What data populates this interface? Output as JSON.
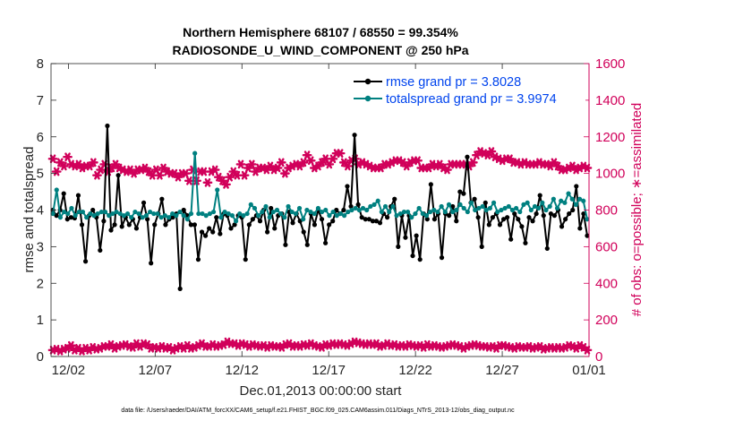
{
  "chart_data": {
    "type": "line",
    "title": "Northern Hemisphere 68107 / 68550 = 99.354%",
    "subtitle": "RADIOSONDE_U_WIND_COMPONENT @ 250 hPa",
    "xlabel": "Dec.01,2013 00:00:00 start",
    "ylabel": "rmse and totalspread",
    "ylabel_right": "# of obs: o=possible; ∗=assimilated",
    "xlim": [
      0,
      31
    ],
    "ylim": [
      0,
      8
    ],
    "ylim_right": [
      0,
      1600
    ],
    "x_ticks": [
      {
        "x": 1,
        "label": "12/02"
      },
      {
        "x": 6,
        "label": "12/07"
      },
      {
        "x": 11,
        "label": "12/12"
      },
      {
        "x": 16,
        "label": "12/17"
      },
      {
        "x": 21,
        "label": "12/22"
      },
      {
        "x": 26,
        "label": "12/27"
      },
      {
        "x": 31,
        "label": "01/01"
      }
    ],
    "y_ticks": [
      "0",
      "1",
      "2",
      "3",
      "4",
      "5",
      "6",
      "7",
      "8"
    ],
    "y_ticks_right": [
      "0",
      "200",
      "400",
      "600",
      "800",
      "1000",
      "1200",
      "1400",
      "1600"
    ],
    "grid": false,
    "legend_position": "top-right",
    "footer": "data file: /Users/raeder/DAI/ATM_forcXX/CAM6_setup/f.e21.FHIST_BGC.f09_025.CAM6assim.011/Diags_NTrS_2013-12/obs_diag_output.nc",
    "colors": {
      "rmse": "#000000",
      "spread": "#008080",
      "obs": "#d1005a"
    },
    "series": [
      {
        "name": "rmse grand pr = 3.8028",
        "axis": "left",
        "values": [
          4.0,
          3.85,
          4.0,
          4.45,
          3.75,
          3.8,
          3.78,
          4.4,
          3.6,
          2.6,
          3.85,
          4.0,
          3.8,
          2.9,
          3.7,
          6.3,
          3.45,
          3.6,
          4.95,
          3.55,
          3.8,
          3.6,
          3.75,
          3.5,
          3.8,
          4.2,
          3.75,
          2.55,
          3.6,
          3.9,
          4.3,
          3.6,
          3.75,
          3.8,
          3.9,
          1.85,
          4.0,
          3.85,
          3.6,
          3.6,
          2.65,
          3.4,
          3.3,
          3.5,
          3.4,
          3.8,
          3.35,
          3.9,
          3.85,
          3.5,
          3.6,
          3.85,
          3.8,
          2.65,
          3.6,
          3.75,
          3.85,
          3.7,
          4.0,
          3.4,
          4.05,
          3.5,
          3.85,
          3.9,
          3.05,
          3.95,
          3.65,
          3.9,
          3.7,
          3.4,
          3.05,
          3.9,
          3.6,
          4.0,
          3.75,
          3.1,
          3.6,
          3.7,
          4.0,
          3.9,
          4.0,
          4.65,
          4.1,
          6.05,
          4.15,
          3.8,
          3.75,
          3.75,
          3.7,
          3.7,
          3.65,
          3.9,
          3.8,
          4.1,
          4.3,
          3.0,
          3.85,
          3.25,
          3.85,
          2.75,
          3.3,
          2.65,
          3.9,
          3.75,
          4.7,
          3.75,
          3.9,
          2.7,
          3.9,
          3.85,
          4.1,
          3.7,
          4.5,
          4.45,
          5.45,
          4.2,
          4.3,
          3.8,
          3.0,
          4.2,
          3.6,
          3.8,
          3.9,
          3.6,
          3.75,
          3.8,
          3.2,
          3.9,
          3.75,
          3.55,
          3.1,
          3.8,
          3.7,
          3.9,
          4.4,
          3.85,
          2.95,
          3.9,
          3.85,
          4.0,
          3.55,
          3.75,
          3.9,
          4.0,
          4.65,
          3.5,
          3.9,
          3.3
        ]
      },
      {
        "name": "totalspread grand pr = 3.9974",
        "axis": "left",
        "values": [
          3.9,
          4.55,
          3.8,
          3.95,
          3.9,
          4.05,
          3.85,
          3.95,
          3.95,
          3.8,
          3.9,
          3.85,
          3.9,
          3.95,
          3.95,
          3.85,
          3.9,
          3.95,
          3.9,
          3.85,
          3.9,
          3.8,
          3.95,
          3.9,
          3.8,
          3.85,
          3.95,
          3.9,
          3.9,
          3.8,
          3.85,
          3.8,
          3.9,
          3.85,
          3.95,
          3.85,
          3.75,
          3.9,
          5.55,
          3.9,
          3.9,
          3.85,
          3.9,
          3.95,
          4.55,
          3.8,
          3.95,
          3.9,
          3.85,
          3.7,
          3.9,
          3.85,
          3.9,
          4.15,
          4.05,
          3.85,
          3.95,
          4.1,
          3.8,
          3.95,
          4.0,
          3.9,
          3.8,
          4.1,
          3.95,
          3.9,
          4.05,
          3.75,
          4.0,
          3.95,
          3.9,
          4.05,
          3.95,
          4.0,
          3.85,
          3.95,
          3.85,
          3.9,
          3.85,
          3.95,
          4.0,
          4.05,
          4.0,
          4.05,
          4.0,
          4.1,
          4.15,
          4.25,
          3.95,
          4.1,
          3.95,
          4.1,
          3.85,
          3.9,
          3.95,
          3.95,
          3.8,
          3.9,
          4.05,
          3.9,
          3.85,
          3.95,
          4.0,
          3.95,
          4.1,
          3.95,
          4.15,
          3.95,
          4.0,
          4.15,
          4.05,
          3.95,
          4.2,
          4.0,
          4.05,
          4.1,
          4.0,
          4.05,
          4.2,
          3.95,
          4.0,
          4.05,
          4.1,
          4.0,
          4.05,
          3.95,
          4.15,
          4.2,
          4.0,
          4.1,
          4.05,
          4.2,
          4.0,
          4.1,
          4.3,
          4.05,
          4.25,
          4.2,
          4.45,
          4.3,
          4.15,
          4.3,
          4.25,
          3.75
        ]
      },
      {
        "name": "possible",
        "axis": "right",
        "values": [
          1080,
          1010,
          1060,
          1040,
          1090,
          1050,
          1040,
          1050,
          1030,
          1040,
          1040,
          1060,
          990,
          1020,
          1050,
          1010,
          1030,
          1050,
          1030,
          1020,
          1010,
          1020,
          1000,
          1020,
          1020,
          1030,
          1010,
          990,
          1020,
          990,
          1030,
          1010,
          1000,
          1000,
          980,
          1000,
          1000,
          960,
          1020,
          960,
          1010,
          1010,
          950,
          1010,
          1020,
          980,
          960,
          940,
          980,
          1010,
          990,
          1050,
          990,
          1030,
          1050,
          1010,
          1030,
          1030,
          1020,
          1040,
          1020,
          1030,
          1060,
          1000,
          1030,
          1040,
          1050,
          1040,
          1060,
          1100,
          1070,
          1030,
          1040,
          1060,
          1080,
          1050,
          1080,
          1110,
          1110,
          1060,
          1040,
          1070,
          1080,
          1050,
          1060,
          1050,
          1040,
          1030,
          1030,
          1030,
          1050,
          1050,
          1060,
          1070,
          1070,
          1060,
          1040,
          1060,
          1070,
          1070,
          1030,
          1030,
          1030,
          1050,
          1040,
          1050,
          1030,
          1020,
          1050,
          1050,
          1050,
          1050,
          1050,
          1040,
          1060,
          1100,
          1120,
          1110,
          1100,
          1120,
          1090,
          1080,
          1070,
          1080,
          1080,
          1060,
          1060,
          1050,
          1060,
          1050,
          1050,
          1050,
          1060,
          1050,
          1050,
          1040,
          1060,
          1040,
          1020,
          1020,
          1030,
          1040,
          1020,
          1030,
          1040,
          1030
        ]
      },
      {
        "name": "assimilated",
        "axis": "right",
        "values": [
          35,
          40,
          30,
          40,
          45,
          60,
          35,
          45,
          30,
          45,
          35,
          50,
          40,
          45,
          55,
          55,
          65,
          45,
          55,
          60,
          65,
          55,
          50,
          70,
          55,
          70,
          65,
          45,
          50,
          45,
          55,
          45,
          50,
          35,
          45,
          55,
          45,
          60,
          45,
          50,
          60,
          70,
          55,
          55,
          65,
          55,
          60,
          65,
          80,
          70,
          70,
          60,
          70,
          65,
          55,
          65,
          60,
          55,
          60,
          50,
          60,
          55,
          55,
          50,
          65,
          70,
          55,
          60,
          55,
          65,
          60,
          70,
          60,
          55,
          50,
          65,
          60,
          70,
          65,
          70,
          65,
          60,
          70,
          80,
          75,
          70,
          65,
          70,
          65,
          70,
          55,
          60,
          70,
          60,
          65,
          55,
          60,
          55,
          65,
          60,
          55,
          60,
          50,
          65,
          55,
          60,
          55,
          50,
          55,
          60,
          65,
          60,
          55,
          45,
          55,
          60,
          65,
          60,
          55,
          55,
          50,
          55,
          45,
          60,
          60,
          55,
          50,
          45,
          55,
          50,
          50,
          55,
          45,
          50,
          55,
          40,
          45,
          50,
          45,
          50,
          45,
          50,
          60,
          55,
          45,
          60,
          50,
          35
        ]
      }
    ]
  }
}
